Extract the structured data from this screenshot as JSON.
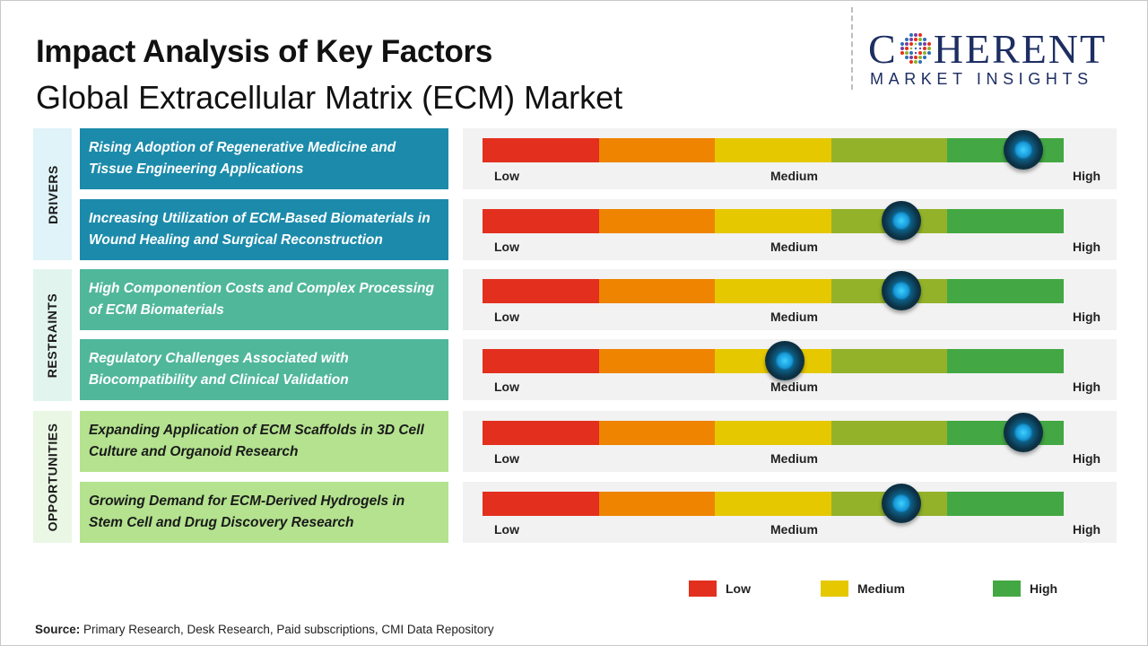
{
  "title": "Impact Analysis of Key Factors",
  "subtitle": "Global Extracellular Matrix (ECM) Market",
  "logo": {
    "word_before": "C",
    "word_after": "HERENT",
    "tagline": "MARKET INSIGHTS"
  },
  "categories": [
    {
      "label": "DRIVERS",
      "bg": "#dff3f9"
    },
    {
      "label": "RESTRAINTS",
      "bg": "#e2f4ee"
    },
    {
      "label": "OPPORTUNITIES",
      "bg": "#eaf7e5"
    }
  ],
  "scale_labels": {
    "low": "Low",
    "medium": "Medium",
    "high": "High"
  },
  "segment_colors": [
    "#e3301e",
    "#ee8400",
    "#e6c800",
    "#93b22a",
    "#43a843"
  ],
  "chart_data": {
    "type": "bar",
    "scale": "Low / Medium / High (0 = Low, 1 = High)",
    "categories": [
      "Rising Adoption of Regenerative Medicine and Tissue Engineering Applications",
      "Increasing Utilization of ECM-Based Biomaterials in Wound Healing and Surgical Reconstruction",
      "High Componention Costs and Complex Processing of ECM Biomaterials",
      "Regulatory Challenges Associated with Biocompatibility and Clinical Validation",
      "Expanding Application of ECM Scaffolds in 3D Cell Culture and Organoid Research",
      "Growing Demand for ECM-Derived Hydrogels in Stem Cell and Drug Discovery Research"
    ],
    "factors": [
      {
        "group": "DRIVERS",
        "text": "Rising Adoption of Regenerative Medicine and Tissue Engineering Applications",
        "impact": 0.93,
        "box": "#1c8bab",
        "text_color": "#ffffff"
      },
      {
        "group": "DRIVERS",
        "text": "Increasing Utilization of ECM-Based Biomaterials in Wound Healing and Surgical Reconstruction",
        "impact": 0.72,
        "box": "#1c8bab",
        "text_color": "#ffffff"
      },
      {
        "group": "RESTRAINTS",
        "text": "High Componention Costs and Complex Processing of ECM Biomaterials",
        "impact": 0.72,
        "box": "#51b79b",
        "text_color": "#ffffff"
      },
      {
        "group": "RESTRAINTS",
        "text": "Regulatory Challenges Associated with Biocompatibility and Clinical Validation",
        "impact": 0.52,
        "box": "#51b79b",
        "text_color": "#ffffff"
      },
      {
        "group": "OPPORTUNITIES",
        "text": "Expanding Application of ECM Scaffolds in 3D Cell Culture and Organoid Research",
        "impact": 0.93,
        "box": "#b4e28f",
        "text_color": "#1a1a1a"
      },
      {
        "group": "OPPORTUNITIES",
        "text": "Growing Demand for ECM-Derived Hydrogels in Stem Cell and Drug Discovery Research",
        "impact": 0.72,
        "box": "#b4e28f",
        "text_color": "#1a1a1a"
      }
    ],
    "legend": [
      {
        "label": "Low",
        "color": "#e3301e"
      },
      {
        "label": "Medium",
        "color": "#e6c800"
      },
      {
        "label": "High",
        "color": "#43a843"
      }
    ]
  },
  "source": {
    "label": "Source:",
    "text": " Primary Research, Desk Research, Paid subscriptions, CMI Data Repository"
  }
}
